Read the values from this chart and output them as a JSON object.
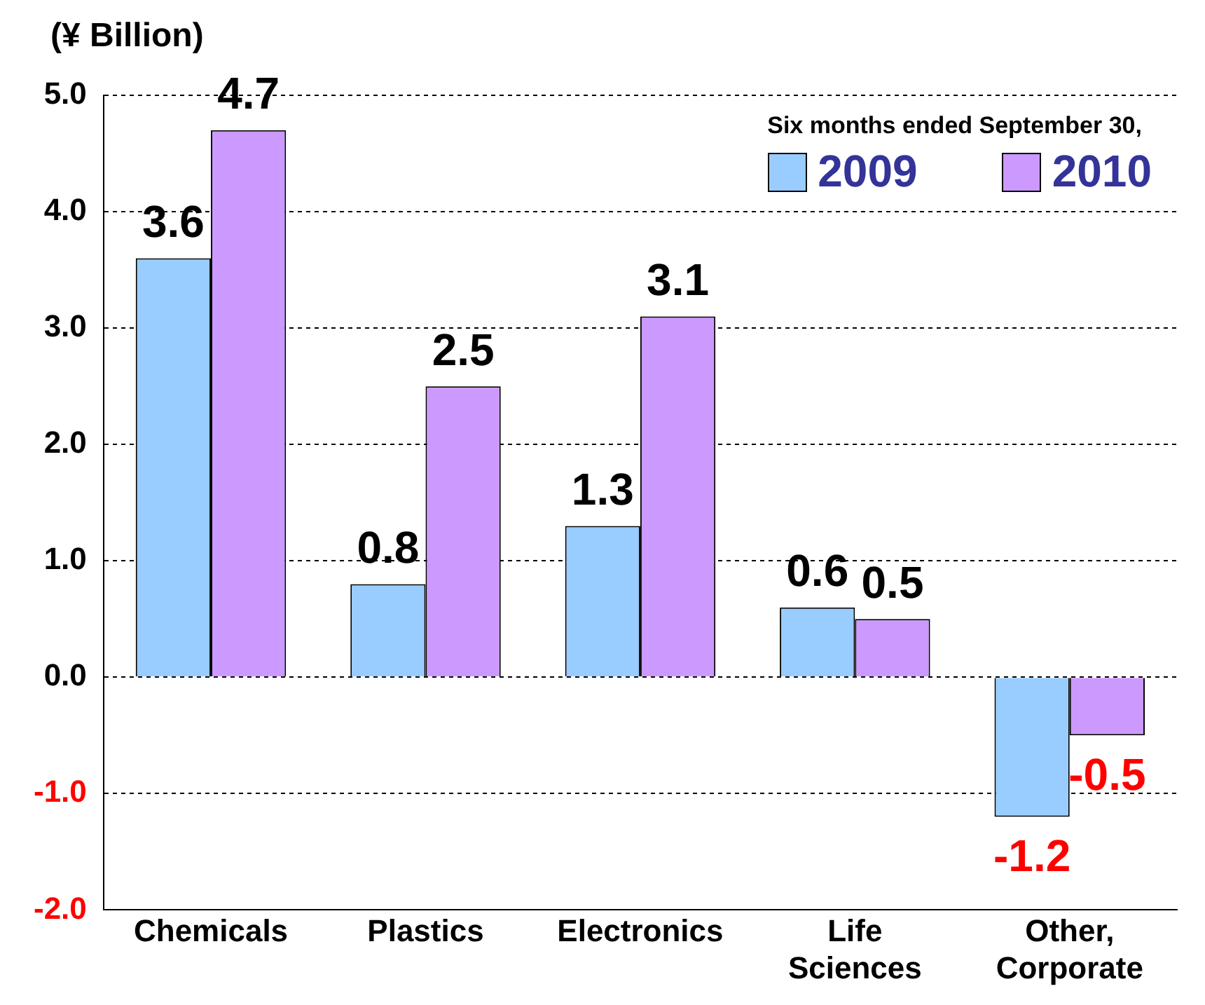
{
  "chart_data": {
    "type": "bar",
    "ylabel": "(¥ Billion)",
    "legend_title": "Six months ended September 30,",
    "categories": [
      "Chemicals",
      "Plastics",
      "Electronics",
      "Life Sciences",
      "Other, Corporate"
    ],
    "series": [
      {
        "name": "2009",
        "color": "#99ccff",
        "values": [
          3.6,
          0.8,
          1.3,
          0.6,
          -1.2
        ]
      },
      {
        "name": "2010",
        "color": "#cc99ff",
        "values": [
          4.7,
          2.5,
          3.1,
          0.5,
          -0.5
        ]
      }
    ],
    "ylim": [
      -2,
      5
    ],
    "yticks": [
      {
        "value": -2,
        "label": "-2.0"
      },
      {
        "value": -1,
        "label": "-1.0"
      },
      {
        "value": 0,
        "label": "0.0"
      },
      {
        "value": 1,
        "label": "1.0"
      },
      {
        "value": 2,
        "label": "2.0"
      },
      {
        "value": 3,
        "label": "3.0"
      },
      {
        "value": 4,
        "label": "4.0"
      },
      {
        "value": 5,
        "label": "5.0"
      }
    ],
    "grid": "y",
    "legend": "top right",
    "data_labels": true
  }
}
